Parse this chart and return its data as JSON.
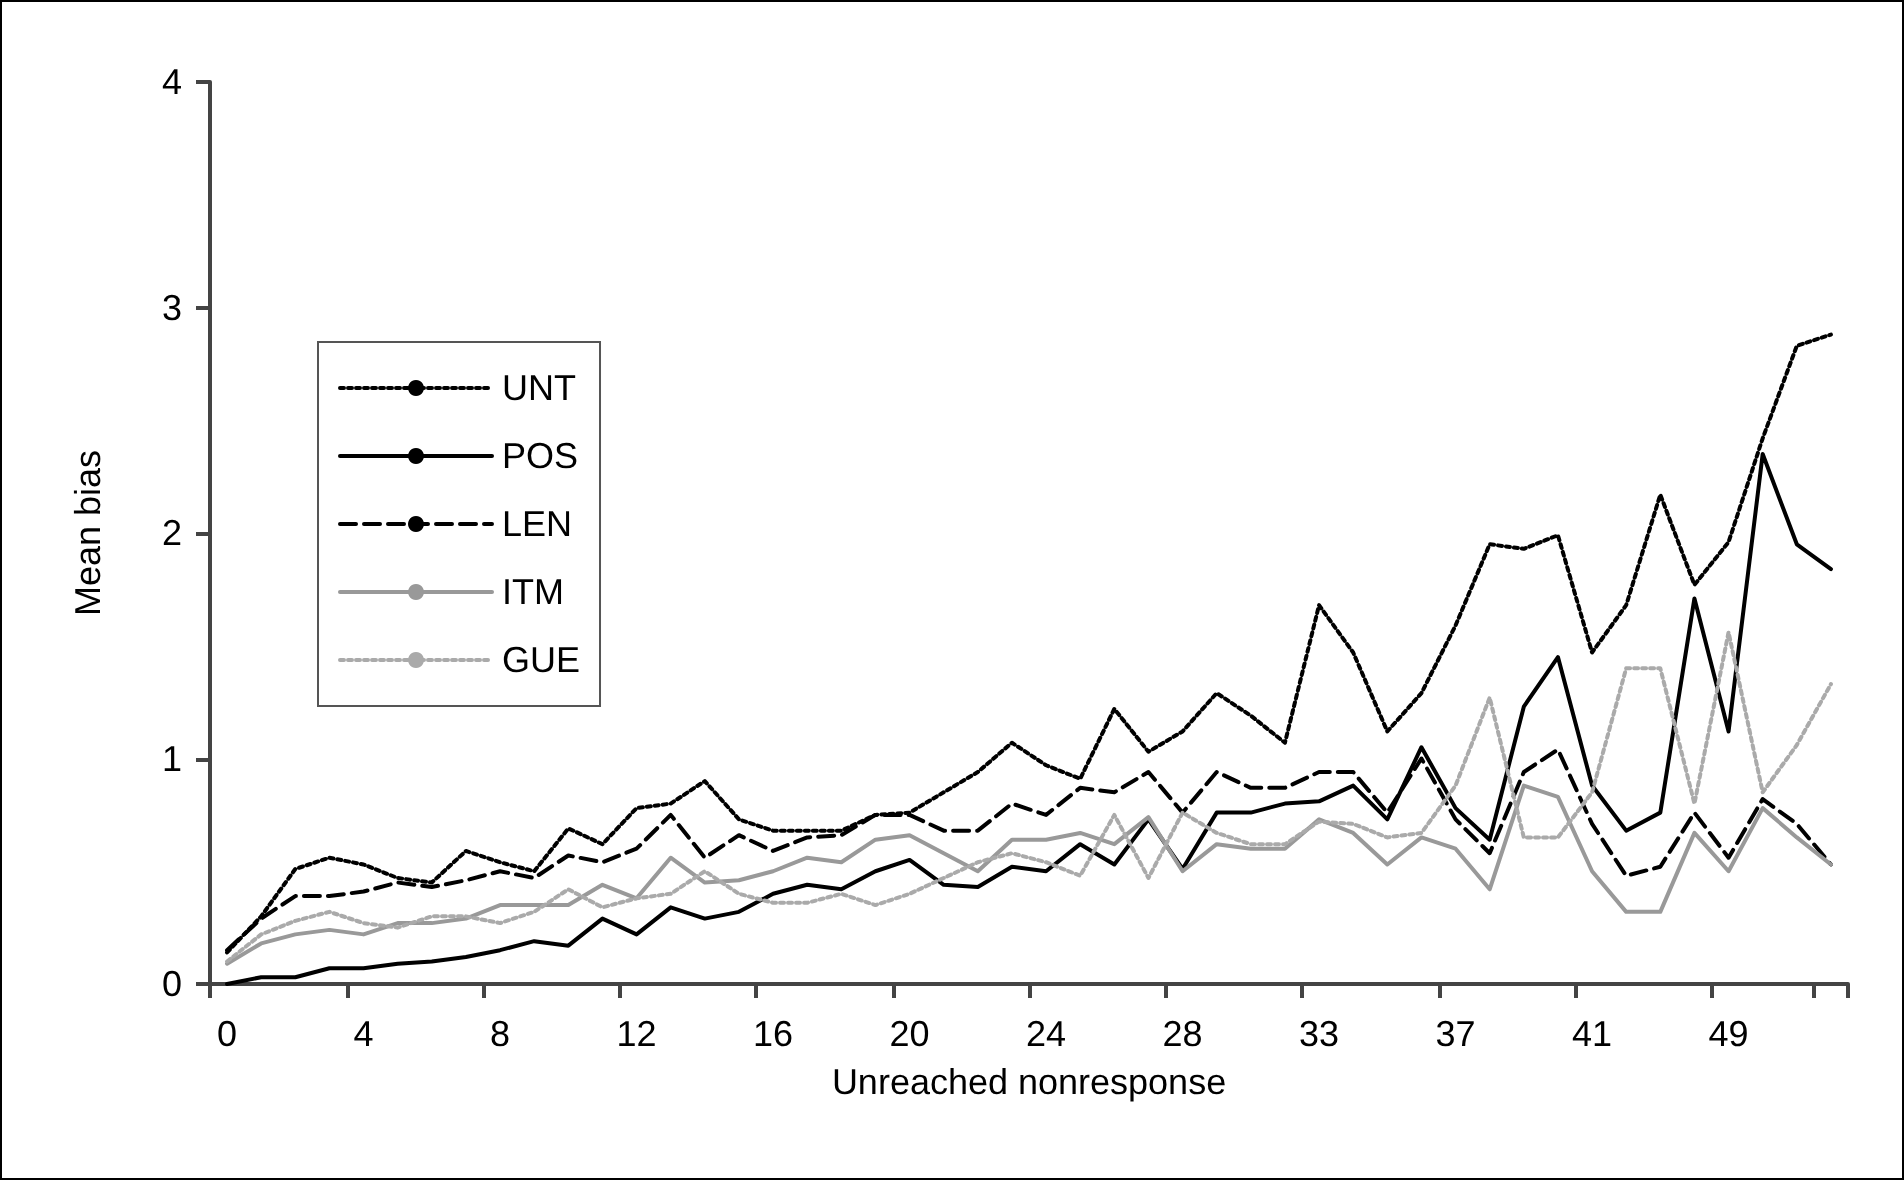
{
  "chart_data": {
    "type": "line",
    "xlabel": "Unreached nonresponse",
    "ylabel": "Mean bias",
    "categories": [
      "0",
      null,
      null,
      null,
      "4",
      null,
      null,
      null,
      "8",
      null,
      null,
      null,
      "12",
      null,
      null,
      null,
      "16",
      null,
      null,
      null,
      "20",
      null,
      null,
      null,
      "24",
      null,
      null,
      null,
      "28",
      null,
      null,
      null,
      "33",
      null,
      null,
      null,
      "37",
      null,
      null,
      null,
      "41",
      null,
      null,
      null,
      "49",
      null,
      null,
      null
    ],
    "series": [
      {
        "name": "UNT",
        "color": "#000000",
        "line_style": "dotted",
        "values": [
          0.14,
          0.3,
          0.51,
          0.56,
          0.53,
          0.47,
          0.45,
          0.59,
          0.54,
          0.5,
          0.69,
          0.62,
          0.78,
          0.8,
          0.9,
          0.73,
          0.68,
          0.68,
          0.68,
          0.75,
          0.76,
          0.85,
          0.94,
          1.07,
          0.97,
          0.91,
          1.22,
          1.03,
          1.12,
          1.29,
          1.19,
          1.07,
          1.68,
          1.47,
          1.12,
          1.29,
          1.59,
          1.95,
          1.93,
          1.99,
          1.47,
          1.68,
          2.17,
          1.77,
          1.96,
          2.42,
          2.83,
          2.88
        ]
      },
      {
        "name": "POS",
        "color": "#000000",
        "line_style": "solid",
        "values": [
          0,
          0.03,
          0.03,
          0.07,
          0.07,
          0.09,
          0.1,
          0.12,
          0.15,
          0.19,
          0.17,
          0.29,
          0.22,
          0.34,
          0.29,
          0.32,
          0.4,
          0.44,
          0.42,
          0.5,
          0.55,
          0.44,
          0.43,
          0.52,
          0.5,
          0.62,
          0.53,
          0.73,
          0.51,
          0.76,
          0.76,
          0.8,
          0.81,
          0.88,
          0.73,
          1.05,
          0.78,
          0.64,
          1.23,
          1.45,
          0.88,
          0.68,
          0.76,
          1.71,
          1.12,
          2.35,
          1.95,
          1.84
        ]
      },
      {
        "name": "LEN",
        "color": "#000000",
        "line_style": "dashed",
        "values": [
          0.15,
          0.29,
          0.39,
          0.39,
          0.41,
          0.45,
          0.43,
          0.46,
          0.5,
          0.47,
          0.57,
          0.54,
          0.6,
          0.75,
          0.56,
          0.66,
          0.59,
          0.65,
          0.66,
          0.75,
          0.75,
          0.68,
          0.68,
          0.8,
          0.75,
          0.87,
          0.85,
          0.94,
          0.76,
          0.94,
          0.87,
          0.87,
          0.94,
          0.94,
          0.76,
          1.0,
          0.73,
          0.58,
          0.94,
          1.04,
          0.71,
          0.48,
          0.52,
          0.76,
          0.56,
          0.82,
          0.71,
          0.53
        ]
      },
      {
        "name": "ITM",
        "color": "#999999",
        "line_style": "solid",
        "values": [
          0.09,
          0.18,
          0.22,
          0.24,
          0.22,
          0.27,
          0.27,
          0.29,
          0.35,
          0.35,
          0.35,
          0.44,
          0.38,
          0.56,
          0.45,
          0.46,
          0.5,
          0.56,
          0.54,
          0.64,
          0.66,
          0.58,
          0.5,
          0.64,
          0.64,
          0.67,
          0.62,
          0.74,
          0.5,
          0.62,
          0.6,
          0.6,
          0.73,
          0.67,
          0.53,
          0.65,
          0.6,
          0.42,
          0.88,
          0.83,
          0.5,
          0.32,
          0.32,
          0.67,
          0.5,
          0.78,
          0.65,
          0.53
        ]
      },
      {
        "name": "GUE",
        "color": "#aaaaaa",
        "line_style": "dotted",
        "values": [
          0.1,
          0.22,
          0.28,
          0.32,
          0.27,
          0.25,
          0.3,
          0.3,
          0.27,
          0.32,
          0.42,
          0.34,
          0.38,
          0.4,
          0.5,
          0.4,
          0.36,
          0.36,
          0.4,
          0.35,
          0.4,
          0.47,
          0.54,
          0.58,
          0.54,
          0.48,
          0.75,
          0.47,
          0.76,
          0.67,
          0.62,
          0.62,
          0.72,
          0.71,
          0.65,
          0.67,
          0.88,
          1.27,
          0.65,
          0.65,
          0.85,
          1.4,
          1.4,
          0.8,
          1.56,
          0.85,
          1.06,
          1.33
        ]
      }
    ],
    "ylim": [
      0,
      4
    ],
    "yticks": [
      0,
      1,
      2,
      3,
      4
    ],
    "grid": false,
    "legend": "left",
    "marker": "none"
  }
}
